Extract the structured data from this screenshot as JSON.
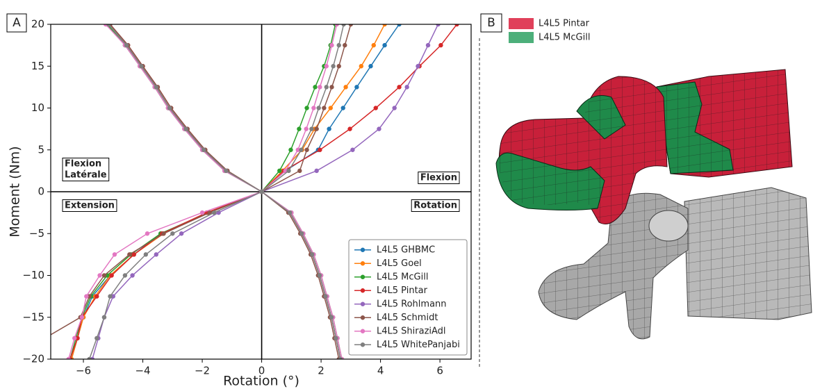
{
  "chart_data": {
    "type": "line",
    "panel_label": "A",
    "xlabel": "Rotation (°)",
    "ylabel": "Moment (Nm)",
    "xlim": [
      -7.1,
      7.05
    ],
    "ylim": [
      -20,
      20
    ],
    "xticks": [
      {
        "value": -6,
        "label": "−6"
      },
      {
        "value": -4,
        "label": "−4"
      },
      {
        "value": -2,
        "label": "−2"
      },
      0,
      2,
      4,
      6
    ],
    "yticks": [
      {
        "value": -20,
        "label": "−20"
      },
      {
        "value": -15,
        "label": "−15"
      },
      {
        "value": -10,
        "label": "−10"
      },
      {
        "value": -5,
        "label": "−5"
      },
      0,
      5,
      10,
      15,
      20
    ],
    "zero_lines": true,
    "grid": false,
    "legend": "lower right",
    "markers": true,
    "annotations": [
      [
        "Flexion",
        "Latérale"
      ],
      [
        "Flexion"
      ],
      [
        "Extension"
      ],
      [
        "Rotation"
      ]
    ],
    "series": [
      {
        "name": "L4L5 GHBMC",
        "color": "#1f77b4",
        "x": [
          0,
          0.8,
          1.9,
          2.27,
          2.74,
          3.2,
          3.67,
          4.14,
          4.63,
          null,
          0,
          -1.8,
          -3.4,
          -4.3,
          -5.1,
          -5.7,
          -6.0,
          -6.2,
          -6.4,
          null,
          0,
          -1.2,
          -1.95,
          -2.55,
          -3.1,
          -3.55,
          -4.05,
          -4.55,
          -5.15,
          null,
          0,
          0.95,
          1.35,
          1.7,
          1.95,
          2.15,
          2.35,
          2.5,
          2.65
        ],
        "values": [
          0,
          2.5,
          5,
          7.5,
          10,
          12.5,
          15,
          17.5,
          20,
          null,
          0,
          -2.5,
          -5,
          -7.5,
          -10,
          -12.5,
          -15,
          -17.5,
          -20,
          null,
          0,
          2.5,
          5,
          7.5,
          10,
          12.5,
          15,
          17.5,
          20,
          null,
          0,
          -2.5,
          -5,
          -7.5,
          -10,
          -12.5,
          -15,
          -17.5,
          -20
        ]
      },
      {
        "name": "L4L5 Goel",
        "color": "#ff7f0e",
        "x": [
          0,
          0.7,
          1.36,
          1.78,
          2.32,
          2.83,
          3.35,
          3.77,
          4.14,
          null,
          0,
          -1.8,
          -3.3,
          -4.3,
          -5.1,
          -5.6,
          -6.0,
          -6.2,
          -6.4,
          null,
          0,
          -1.2,
          -1.95,
          -2.55,
          -3.1,
          -3.55,
          -4.05,
          -4.55,
          -5.15,
          null,
          0,
          0.95,
          1.35,
          1.7,
          1.95,
          2.15,
          2.35,
          2.5,
          2.65
        ],
        "values": [
          0,
          2.5,
          5,
          7.5,
          10,
          12.5,
          15,
          17.5,
          20,
          null,
          0,
          -2.5,
          -5,
          -7.5,
          -10,
          -12.5,
          -15,
          -17.5,
          -20,
          null,
          0,
          2.5,
          5,
          7.5,
          10,
          12.5,
          15,
          17.5,
          20,
          null,
          0,
          -2.5,
          -5,
          -7.5,
          -10,
          -12.5,
          -15,
          -17.5,
          -20
        ]
      },
      {
        "name": "L4L5 McGill",
        "color": "#2ca02c",
        "x": [
          0,
          0.6,
          0.98,
          1.26,
          1.52,
          1.8,
          2.1,
          2.32,
          2.48,
          null,
          0,
          -1.8,
          -3.4,
          -4.4,
          -5.2,
          -5.75,
          -6.05,
          -6.25,
          -6.45,
          null,
          0,
          -1.25,
          -2.0,
          -2.6,
          -3.15,
          -3.6,
          -4.1,
          -4.6,
          -5.2,
          null,
          0,
          1.0,
          1.4,
          1.75,
          2.0,
          2.2,
          2.4,
          2.55,
          2.7
        ],
        "values": [
          0,
          2.5,
          5,
          7.5,
          10,
          12.5,
          15,
          17.5,
          20,
          null,
          0,
          -2.5,
          -5,
          -7.5,
          -10,
          -12.5,
          -15,
          -17.5,
          -20,
          null,
          0,
          2.5,
          5,
          7.5,
          10,
          12.5,
          15,
          17.5,
          20,
          null,
          0,
          -2.5,
          -5,
          -7.5,
          -10,
          -12.5,
          -15,
          -17.5,
          -20
        ]
      },
      {
        "name": "L4L5 Pintar",
        "color": "#d62728",
        "x": [
          0,
          0.75,
          1.96,
          2.97,
          3.84,
          4.63,
          5.31,
          6.03,
          6.57,
          null,
          0,
          -1.85,
          -3.35,
          -4.3,
          -5.05,
          -5.55,
          -6.05,
          -6.2,
          -6.45,
          null,
          0,
          -1.2,
          -1.9,
          -2.5,
          -3.05,
          -3.5,
          -4.0,
          -4.5,
          -5.1,
          null,
          0,
          0.95,
          1.35,
          1.7,
          1.95,
          2.15,
          2.35,
          2.5,
          2.65
        ],
        "values": [
          0,
          2.5,
          5,
          7.5,
          10,
          12.5,
          15,
          17.5,
          20,
          null,
          0,
          -2.5,
          -5,
          -7.5,
          -10,
          -12.5,
          -15,
          -17.5,
          -20,
          null,
          0,
          2.5,
          5,
          7.5,
          10,
          12.5,
          15,
          17.5,
          20,
          null,
          0,
          -2.5,
          -5,
          -7.5,
          -10,
          -12.5,
          -15,
          -17.5,
          -20
        ]
      },
      {
        "name": "L4L5 Rohlmann",
        "color": "#9467bd",
        "x": [
          0,
          1.85,
          3.06,
          3.95,
          4.47,
          4.89,
          5.26,
          5.6,
          5.94,
          null,
          0,
          -1.45,
          -2.7,
          -3.55,
          -4.35,
          -5.0,
          -5.3,
          -5.5,
          -5.7,
          null,
          0,
          -1.2,
          -1.95,
          -2.55,
          -3.1,
          -3.55,
          -4.05,
          -4.55,
          -5.15,
          null,
          0,
          0.95,
          1.35,
          1.7,
          1.95,
          2.15,
          2.35,
          2.5,
          2.65
        ],
        "values": [
          0,
          2.5,
          5,
          7.5,
          10,
          12.5,
          15,
          17.5,
          20,
          null,
          0,
          -2.5,
          -5,
          -7.5,
          -10,
          -12.5,
          -15,
          -17.5,
          -20,
          null,
          0,
          2.5,
          5,
          7.5,
          10,
          12.5,
          15,
          17.5,
          20,
          null,
          0,
          -2.5,
          -5,
          -7.5,
          -10,
          -12.5,
          -15,
          -17.5,
          -20
        ]
      },
      {
        "name": "L4L5 Schmidt",
        "color": "#8c564b",
        "x": [
          0,
          1.28,
          1.52,
          1.85,
          2.1,
          2.36,
          2.6,
          2.8,
          3.0,
          null,
          0,
          -1.75,
          -3.3,
          -4.45,
          -5.3,
          -5.8,
          -6.1,
          -7.3,
          -8.5,
          null,
          0,
          -1.15,
          -1.9,
          -2.5,
          -3.05,
          -3.5,
          -4.0,
          -4.5,
          -5.1,
          null,
          0,
          0.9,
          1.3,
          1.65,
          1.9,
          2.1,
          2.3,
          2.45,
          2.6
        ],
        "values": [
          0,
          2.5,
          5,
          7.5,
          10,
          12.5,
          15,
          17.5,
          20,
          null,
          0,
          -2.5,
          -5,
          -7.5,
          -10,
          -12.5,
          -15,
          -17.5,
          -20,
          null,
          0,
          2.5,
          5,
          7.5,
          10,
          12.5,
          15,
          17.5,
          20,
          null,
          0,
          -2.5,
          -5,
          -7.5,
          -10,
          -12.5,
          -15,
          -17.5,
          -20
        ]
      },
      {
        "name": "L4L5 ShiraziAdl",
        "color": "#e377c2",
        "x": [
          0,
          0.8,
          1.22,
          1.5,
          1.75,
          1.96,
          2.18,
          2.36,
          2.53,
          null,
          0,
          -2.0,
          -3.85,
          -4.95,
          -5.45,
          -5.9,
          -6.05,
          -6.3,
          -6.5,
          null,
          0,
          -1.25,
          -2.0,
          -2.6,
          -3.15,
          -3.6,
          -4.1,
          -4.6,
          -5.25,
          null,
          0,
          1.0,
          1.4,
          1.75,
          2.0,
          2.2,
          2.4,
          2.55,
          2.7
        ],
        "values": [
          0,
          2.5,
          5,
          7.5,
          10,
          12.5,
          15,
          17.5,
          20,
          null,
          0,
          -2.5,
          -5,
          -7.5,
          -10,
          -12.5,
          -15,
          -17.5,
          -20,
          null,
          0,
          2.5,
          5,
          7.5,
          10,
          12.5,
          15,
          17.5,
          20,
          null,
          0,
          -2.5,
          -5,
          -7.5,
          -10,
          -12.5,
          -15,
          -17.5,
          -20
        ]
      },
      {
        "name": "L4L5 WhitePanjabi",
        "color": "#7f7f7f",
        "x": [
          0,
          0.91,
          1.33,
          1.68,
          1.92,
          2.18,
          2.41,
          2.6,
          2.76,
          null,
          0,
          -1.6,
          -3.0,
          -3.9,
          -4.6,
          -5.1,
          -5.3,
          -5.55,
          -5.8,
          null,
          0,
          -1.2,
          -1.95,
          -2.55,
          -3.1,
          -3.55,
          -4.05,
          -4.55,
          -5.15,
          null,
          0,
          0.95,
          1.35,
          1.7,
          1.95,
          2.15,
          2.35,
          2.5,
          2.65
        ],
        "values": [
          0,
          2.5,
          5,
          7.5,
          10,
          12.5,
          15,
          17.5,
          20,
          null,
          0,
          -2.5,
          -5,
          -7.5,
          -10,
          -12.5,
          -15,
          -17.5,
          -20,
          null,
          0,
          2.5,
          5,
          7.5,
          10,
          12.5,
          15,
          17.5,
          20,
          null,
          0,
          -2.5,
          -5,
          -7.5,
          -10,
          -12.5,
          -15,
          -17.5,
          -20
        ]
      }
    ]
  },
  "panel_b": {
    "label": "B",
    "legend": [
      {
        "name": "L4L5 Pintar",
        "color": "#e0405a"
      },
      {
        "name": "L4L5 McGill",
        "color": "#4caf7a"
      }
    ]
  }
}
